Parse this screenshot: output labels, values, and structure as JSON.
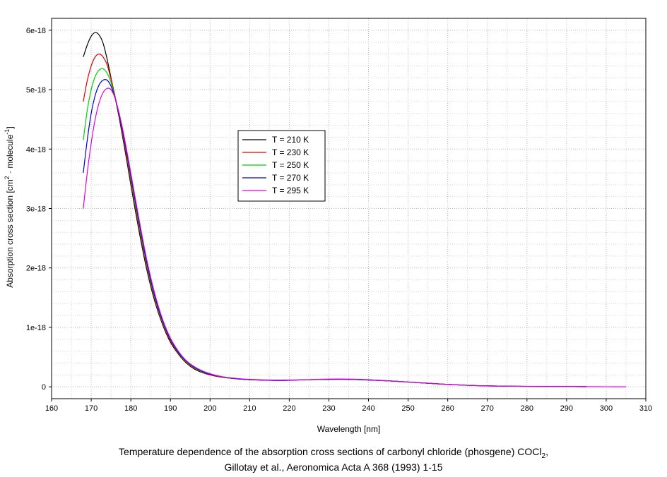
{
  "caption": {
    "line1_main": "Temperature dependence of the absorption cross sections of carbonyl chloride (phosgene) COCl",
    "line1_sub": "2",
    "line1_tail": ",",
    "line2": "Gillotay et al., Aeronomica Acta A 368 (1993) 1-15"
  },
  "chart_data": {
    "type": "line",
    "xlabel": "Wavelength [nm]",
    "ylabel_parts": [
      "Absorption cross section [cm",
      "2",
      " · molecule",
      "-1",
      "]"
    ],
    "xlim": [
      160,
      310
    ],
    "ylim": [
      -2e-19,
      6.2e-18
    ],
    "xticks": [
      160,
      170,
      180,
      190,
      200,
      210,
      220,
      230,
      240,
      250,
      260,
      270,
      280,
      290,
      300,
      310
    ],
    "xtick_labels": [
      "160",
      "170",
      "180",
      "190",
      "200",
      "210",
      "220",
      "230",
      "240",
      "250",
      "260",
      "270",
      "280",
      "290",
      "300",
      "310"
    ],
    "yticks": [
      0,
      1e-18,
      2e-18,
      3e-18,
      4e-18,
      5e-18,
      6e-18
    ],
    "ytick_labels": [
      "0",
      "1e-18",
      "2e-18",
      "3e-18",
      "4e-18",
      "5e-18",
      "6e-18"
    ],
    "grid": true,
    "legend_position": "center-left",
    "series": [
      {
        "name": "T = 210 K",
        "color": "#000000",
        "x": [
          168,
          169,
          170,
          171,
          172,
          173,
          174,
          175,
          176,
          177,
          178,
          179,
          180,
          182,
          184,
          186,
          188,
          190,
          192,
          194,
          196,
          198,
          200,
          203,
          206,
          210,
          215,
          220,
          225,
          230,
          235,
          240,
          245,
          250,
          255,
          260,
          265,
          270,
          275,
          280,
          285,
          290,
          295
        ],
        "y": [
          5.55e-18,
          5.75e-18,
          5.9e-18,
          5.96e-18,
          5.92e-18,
          5.78e-18,
          5.52e-18,
          5.2e-18,
          4.88e-18,
          4.55e-18,
          4.18e-18,
          3.8e-18,
          3.4e-18,
          2.65e-18,
          1.98e-18,
          1.45e-18,
          1.05e-18,
          7.5e-19,
          5.5e-19,
          4e-19,
          3e-19,
          2.4e-19,
          2e-19,
          1.6e-19,
          1.4e-19,
          1.2e-19,
          1.1e-19,
          1.1e-19,
          1.2e-19,
          1.25e-19,
          1.25e-19,
          1.15e-19,
          1e-19,
          8e-20,
          6e-20,
          4e-20,
          2.5e-20,
          1.5e-20,
          1e-20,
          7e-21,
          5e-21,
          4e-21,
          2e-21
        ]
      },
      {
        "name": "T = 230 K",
        "color": "#e00000",
        "x": [
          168,
          169,
          170,
          171,
          172,
          173,
          174,
          175,
          176,
          177,
          178,
          179,
          180,
          182,
          184,
          186,
          188,
          190,
          192,
          194,
          196,
          198,
          200,
          203,
          206,
          210,
          215,
          220,
          225,
          230,
          235,
          240,
          245,
          250,
          255,
          260,
          265,
          270,
          275,
          280,
          285,
          290,
          295
        ],
        "y": [
          4.8e-18,
          5.15e-18,
          5.4e-18,
          5.55e-18,
          5.6e-18,
          5.55e-18,
          5.42e-18,
          5.18e-18,
          4.9e-18,
          4.58e-18,
          4.22e-18,
          3.85e-18,
          3.45e-18,
          2.7e-18,
          2.02e-18,
          1.48e-18,
          1.07e-18,
          7.7e-19,
          5.6e-19,
          4.1e-19,
          3.1e-19,
          2.5e-19,
          2e-19,
          1.6e-19,
          1.4e-19,
          1.2e-19,
          1.1e-19,
          1.1e-19,
          1.2e-19,
          1.25e-19,
          1.25e-19,
          1.15e-19,
          1e-19,
          8e-20,
          6e-20,
          4e-20,
          2.5e-20,
          1.5e-20,
          1e-20,
          7e-21,
          5e-21,
          4e-21,
          2e-21
        ]
      },
      {
        "name": "T = 250 K",
        "color": "#00d000",
        "x": [
          168,
          169,
          170,
          171,
          172,
          173,
          174,
          175,
          176,
          177,
          178,
          179,
          180,
          182,
          184,
          186,
          188,
          190,
          192,
          194,
          196,
          198,
          200,
          203,
          206,
          210,
          215,
          220,
          225,
          230,
          235,
          240,
          245,
          250,
          255,
          260,
          265,
          270,
          275,
          280,
          285,
          290,
          295
        ],
        "y": [
          4.15e-18,
          4.65e-18,
          5e-18,
          5.22e-18,
          5.33e-18,
          5.35e-18,
          5.28e-18,
          5.12e-18,
          4.88e-18,
          4.6e-18,
          4.26e-18,
          3.9e-18,
          3.5e-18,
          2.75e-18,
          2.06e-18,
          1.51e-18,
          1.09e-18,
          7.9e-19,
          5.7e-19,
          4.2e-19,
          3.2e-19,
          2.5e-19,
          2.1e-19,
          1.65e-19,
          1.4e-19,
          1.2e-19,
          1.1e-19,
          1.1e-19,
          1.2e-19,
          1.25e-19,
          1.25e-19,
          1.15e-19,
          1e-19,
          8e-20,
          6e-20,
          4e-20,
          2.5e-20,
          1.5e-20,
          1e-20,
          7e-21,
          5e-21,
          4e-21,
          2e-21
        ]
      },
      {
        "name": "T = 270 K",
        "color": "#0000d0",
        "x": [
          168,
          169,
          170,
          171,
          172,
          173,
          174,
          175,
          176,
          177,
          178,
          179,
          180,
          182,
          184,
          186,
          188,
          190,
          192,
          194,
          196,
          198,
          200,
          203,
          206,
          210,
          215,
          220,
          225,
          230,
          235,
          240,
          245,
          250,
          255,
          260,
          265,
          270,
          275,
          280,
          285,
          290,
          295
        ],
        "y": [
          3.6e-18,
          4.15e-18,
          4.6e-18,
          4.9e-18,
          5.08e-18,
          5.16e-18,
          5.16e-18,
          5.06e-18,
          4.86e-18,
          4.6e-18,
          4.28e-18,
          3.93e-18,
          3.55e-18,
          2.8e-18,
          2.1e-18,
          1.54e-18,
          1.11e-18,
          8e-19,
          5.8e-19,
          4.3e-19,
          3.3e-19,
          2.6e-19,
          2.1e-19,
          1.7e-19,
          1.4e-19,
          1.2e-19,
          1.1e-19,
          1.1e-19,
          1.2e-19,
          1.25e-19,
          1.25e-19,
          1.15e-19,
          1e-19,
          8e-20,
          6e-20,
          4e-20,
          2.5e-20,
          1.5e-20,
          1e-20,
          7e-21,
          5e-21,
          4e-21,
          2e-21
        ]
      },
      {
        "name": "T = 295 K",
        "color": "#e000e0",
        "x": [
          168,
          169,
          170,
          171,
          172,
          173,
          174,
          175,
          176,
          177,
          178,
          179,
          180,
          182,
          184,
          186,
          188,
          190,
          192,
          194,
          196,
          198,
          200,
          203,
          206,
          210,
          215,
          220,
          225,
          230,
          235,
          240,
          245,
          250,
          255,
          260,
          265,
          270,
          275,
          280,
          285,
          290,
          295,
          300,
          305
        ],
        "y": [
          3e-18,
          3.6e-18,
          4.1e-18,
          4.5e-18,
          4.78e-18,
          4.95e-18,
          5.02e-18,
          5e-18,
          4.86e-18,
          4.62e-18,
          4.32e-18,
          3.97e-18,
          3.6e-18,
          2.85e-18,
          2.15e-18,
          1.58e-18,
          1.14e-18,
          8.2e-19,
          6e-19,
          4.4e-19,
          3.4e-19,
          2.7e-19,
          2.2e-19,
          1.7e-19,
          1.45e-19,
          1.25e-19,
          1.15e-19,
          1.15e-19,
          1.2e-19,
          1.3e-19,
          1.3e-19,
          1.2e-19,
          1e-19,
          8e-20,
          6e-20,
          4e-20,
          2.5e-20,
          1.5e-20,
          1e-20,
          7e-21,
          5e-21,
          4e-21,
          2e-21,
          1e-21,
          5e-22
        ]
      }
    ]
  }
}
